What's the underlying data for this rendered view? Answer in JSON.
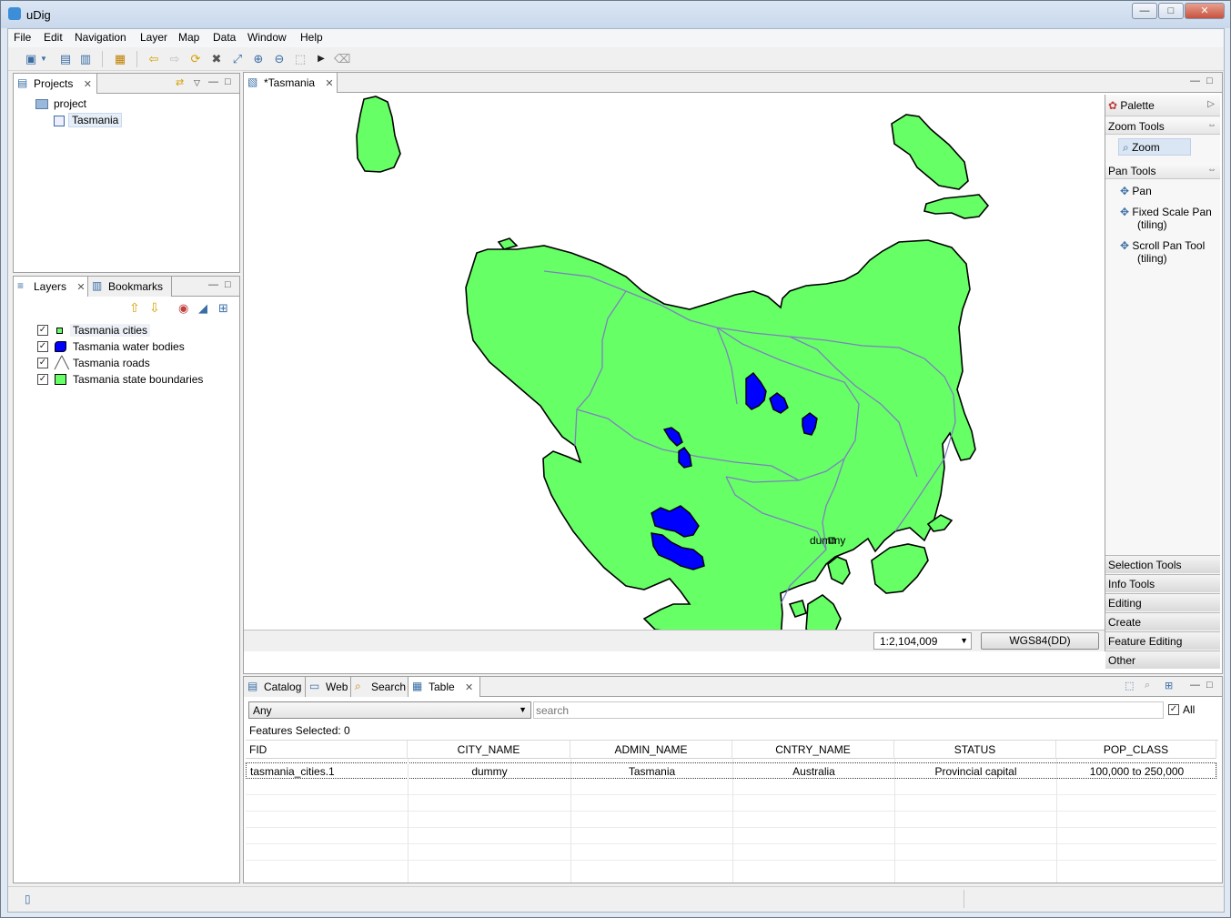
{
  "window": {
    "title": "uDig",
    "minimize": "—",
    "maximize": "□",
    "close": "✕"
  },
  "menu": [
    "File",
    "Edit",
    "Navigation",
    "Layer",
    "Map",
    "Data",
    "Window",
    "Help"
  ],
  "projects": {
    "tab": "Projects",
    "root": "project",
    "child": "Tasmania"
  },
  "layers": {
    "tab": "Layers",
    "bookmarks_tab": "Bookmarks",
    "items": [
      {
        "label": "Tasmania cities",
        "checked": true
      },
      {
        "label": "Tasmania water bodies",
        "checked": true
      },
      {
        "label": "Tasmania roads",
        "checked": true
      },
      {
        "label": "Tasmania state boundaries",
        "checked": true
      }
    ]
  },
  "map": {
    "tab": "*Tasmania",
    "city_label": "dummy",
    "scale": "1:2,104,009",
    "crs": "WGS84(DD)",
    "colors": {
      "land": "#66ff66",
      "water": "#0000ff",
      "roads": "#8080c0",
      "outline": "#000000"
    }
  },
  "palette": {
    "title": "Palette",
    "zoom_tools": "Zoom Tools",
    "zoom": "Zoom",
    "pan_tools": "Pan Tools",
    "pan": "Pan",
    "fixed_scale_pan": "Fixed Scale Pan",
    "fixed_scale_pan_sub": "(tiling)",
    "scroll_pan": "Scroll Pan Tool",
    "scroll_pan_sub": "(tiling)",
    "drawers": [
      "Selection Tools",
      "Info Tools",
      "Editing",
      "Create",
      "Feature Editing",
      "Other"
    ]
  },
  "bottom_tabs": {
    "catalog": "Catalog",
    "web": "Web",
    "search": "Search",
    "table": "Table"
  },
  "table": {
    "filter": "Any",
    "search_placeholder": "search",
    "all_label": "All",
    "features_selected": "Features Selected: 0",
    "columns": [
      "FID",
      "CITY_NAME",
      "ADMIN_NAME",
      "CNTRY_NAME",
      "STATUS",
      "POP_CLASS"
    ],
    "rows": [
      [
        "tasmania_cities.1",
        "dummy",
        "Tasmania",
        "Australia",
        "Provincial capital",
        "100,000 to 250,000"
      ]
    ]
  }
}
